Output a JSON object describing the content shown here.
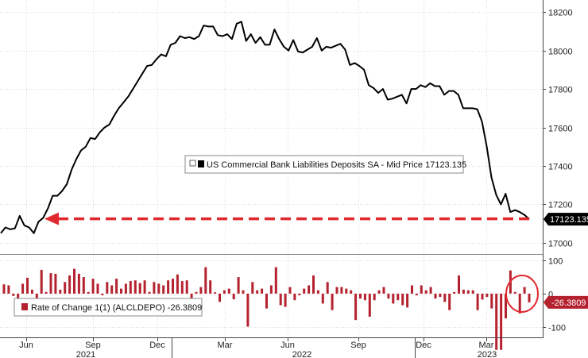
{
  "chart_data": [
    {
      "type": "line",
      "title": "US Commercial Bank Liabilities Deposits SA - Mid Price",
      "legend_label": "US Commercial Bank Liabilities Deposits SA - Mid Price 17123.135",
      "last_value_label": "17123.135",
      "last_value": 17123.135,
      "ylim": [
        16950,
        18230
      ],
      "yticks": [
        17000,
        17200,
        17400,
        17600,
        17800,
        18000,
        18200
      ],
      "ytick_labels": [
        "17000",
        "17200",
        "17400",
        "17600",
        "17800",
        "18000",
        "18200"
      ],
      "series_color": "#000000",
      "values": [
        17050,
        17080,
        17070,
        17075,
        17140,
        17090,
        17080,
        17050,
        17110,
        17130,
        17180,
        17245,
        17245,
        17270,
        17305,
        17380,
        17435,
        17480,
        17500,
        17545,
        17540,
        17575,
        17600,
        17615,
        17660,
        17700,
        17730,
        17760,
        17800,
        17840,
        17880,
        17920,
        17925,
        17955,
        17980,
        17970,
        18030,
        18040,
        18075,
        18065,
        18070,
        18060,
        18075,
        18130,
        18125,
        18125,
        18080,
        18075,
        18085,
        18060,
        18140,
        18150,
        18050,
        18085,
        18040,
        18070,
        18030,
        18030,
        18110,
        18060,
        18020,
        18000,
        18055,
        17995,
        17990,
        18005,
        18020,
        18065,
        18000,
        18020,
        18015,
        18025,
        18035,
        18005,
        17925,
        17935,
        17920,
        17900,
        17820,
        17805,
        17780,
        17800,
        17745,
        17750,
        17760,
        17770,
        17725,
        17800,
        17800,
        17820,
        17810,
        17830,
        17815,
        17815,
        17770,
        17790,
        17790,
        17770,
        17700,
        17700,
        17700,
        17695,
        17630,
        17500,
        17340,
        17250,
        17200,
        17255,
        17160,
        17170,
        17160,
        17145,
        17123.135
      ],
      "trend_arrow": {
        "from_value": 17125,
        "to_value": 17125,
        "color": "#e0282e"
      }
    },
    {
      "type": "bar",
      "title": "Rate of Change 1(1) (ALCLDEPO)",
      "legend_label": "Rate of Change 1(1) (ALCLDEPO) -26.3809",
      "last_value_label": "-26.3809",
      "last_value": -26.3809,
      "ylim": [
        -130,
        115
      ],
      "yticks": [
        100,
        0,
        -100
      ],
      "ytick_labels": [
        "100",
        "0",
        "-100"
      ],
      "series_color": "#b5222f",
      "values": [
        28,
        25,
        -7,
        -18,
        30,
        48,
        12,
        -25,
        72,
        5,
        62,
        60,
        12,
        35,
        55,
        75,
        60,
        50,
        5,
        45,
        30,
        -5,
        35,
        25,
        45,
        15,
        30,
        38,
        40,
        32,
        40,
        5,
        35,
        30,
        25,
        40,
        45,
        58,
        38,
        40,
        -30,
        5,
        20,
        80,
        40,
        4,
        -25,
        10,
        15,
        -17,
        50,
        10,
        -100,
        35,
        10,
        15,
        -45,
        25,
        80,
        -35,
        -40,
        20,
        -20,
        -5,
        15,
        25,
        55,
        10,
        -30,
        35,
        -50,
        20,
        20,
        15,
        10,
        -80,
        -15,
        -20,
        -70,
        -20,
        10,
        20,
        -15,
        -30,
        -20,
        -35,
        -42,
        25,
        -5,
        25,
        10,
        20,
        -15,
        -10,
        -25,
        -50,
        5,
        55,
        12,
        10,
        10,
        -50,
        -18,
        -10,
        -45,
        -170,
        -170,
        -75,
        70,
        5,
        -60,
        20,
        -26.3809
      ],
      "annotation_circle": {
        "color": "#e0282e",
        "description": "circle around latest bars"
      }
    }
  ],
  "x_axis": {
    "month_labels": [
      "Jun",
      "Sep",
      "Dec",
      "Mar",
      "Jun",
      "Sep",
      "Dec",
      "Mar"
    ],
    "year_labels": [
      "2021",
      "2022",
      "2023"
    ]
  },
  "colors": {
    "line": "#000000",
    "bar": "#b5222f",
    "arrow": "#e0282e",
    "last_label_top_bg": "#000000",
    "last_label_bottom_bg": "#b5222f"
  }
}
